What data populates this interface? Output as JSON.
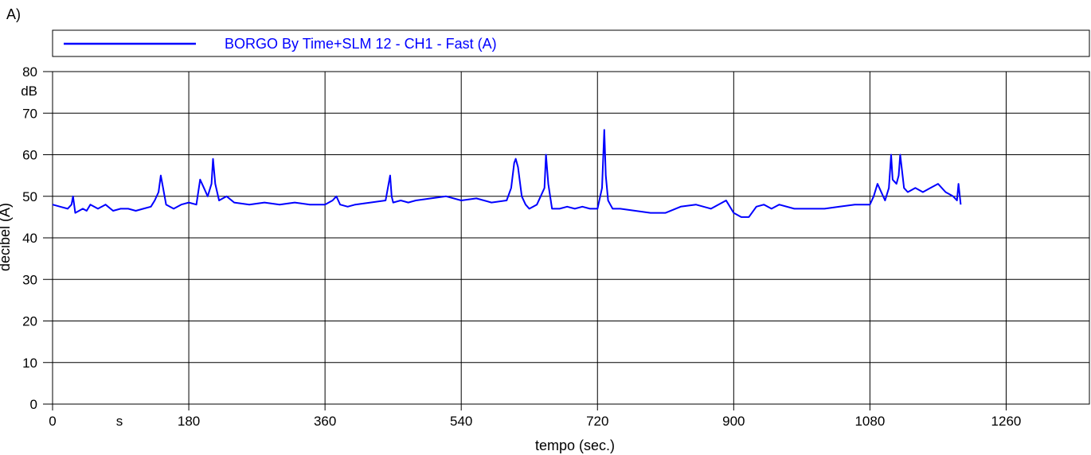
{
  "panel_label": "A)",
  "chart_data": {
    "type": "line",
    "xlabel": "tempo (sec.)",
    "ylabel": "decibel (A)",
    "y_unit_label": "dB",
    "x_unit_label": "s",
    "xlim": [
      0,
      1370
    ],
    "ylim": [
      0,
      80
    ],
    "x_ticks": [
      0,
      180,
      360,
      540,
      720,
      900,
      1080,
      1260
    ],
    "y_ticks": [
      0,
      10,
      20,
      30,
      40,
      50,
      60,
      70,
      80
    ],
    "grid": true,
    "legend_position": "top",
    "series": [
      {
        "name": "BORGO By Time+SLM 12 - CH1 - Fast (A)",
        "color": "#0000ff",
        "x": [
          0,
          10,
          20,
          25,
          27,
          30,
          40,
          45,
          50,
          60,
          70,
          80,
          90,
          100,
          110,
          120,
          130,
          135,
          140,
          143,
          146,
          150,
          160,
          170,
          180,
          190,
          195,
          200,
          205,
          210,
          212,
          215,
          220,
          230,
          240,
          260,
          280,
          300,
          320,
          340,
          360,
          370,
          375,
          380,
          390,
          400,
          420,
          440,
          446,
          448,
          450,
          460,
          470,
          480,
          500,
          520,
          540,
          560,
          580,
          600,
          606,
          610,
          612,
          615,
          620,
          625,
          630,
          640,
          650,
          652,
          655,
          660,
          670,
          680,
          690,
          700,
          710,
          720,
          726,
          729,
          731,
          734,
          737,
          740,
          750,
          770,
          790,
          810,
          830,
          850,
          870,
          890,
          900,
          910,
          920,
          930,
          940,
          950,
          960,
          980,
          1000,
          1020,
          1040,
          1060,
          1080,
          1085,
          1090,
          1100,
          1105,
          1108,
          1110,
          1115,
          1118,
          1120,
          1125,
          1130,
          1140,
          1150,
          1160,
          1170,
          1180,
          1190,
          1195,
          1197,
          1200
        ],
        "y": [
          48,
          47.5,
          47,
          48,
          50,
          46,
          47,
          46.5,
          48,
          47,
          48,
          46.5,
          47,
          47,
          46.5,
          47,
          47.5,
          49,
          51,
          55,
          52,
          48,
          47,
          48,
          48.5,
          48,
          54,
          52,
          50,
          53,
          59,
          53,
          49,
          50,
          48.5,
          48,
          48.5,
          48,
          48.5,
          48,
          48,
          49,
          50,
          48,
          47.5,
          48,
          48.5,
          49,
          55,
          50,
          48.5,
          49,
          48.5,
          49,
          49.5,
          50,
          49,
          49.5,
          48.5,
          49,
          52,
          58,
          59,
          57,
          50,
          48,
          47,
          48,
          52,
          60,
          53,
          47,
          47,
          47.5,
          47,
          47.5,
          47,
          47,
          52,
          66,
          55,
          49,
          48,
          47,
          47,
          46.5,
          46,
          46,
          47.5,
          48,
          47,
          49,
          46,
          45,
          45,
          47.5,
          48,
          47,
          48,
          47,
          47,
          47,
          47.5,
          48,
          48,
          50,
          53,
          49,
          52,
          60,
          54,
          53,
          55,
          60,
          52,
          51,
          52,
          51,
          52,
          53,
          51,
          50,
          49,
          53,
          48
        ]
      }
    ]
  }
}
